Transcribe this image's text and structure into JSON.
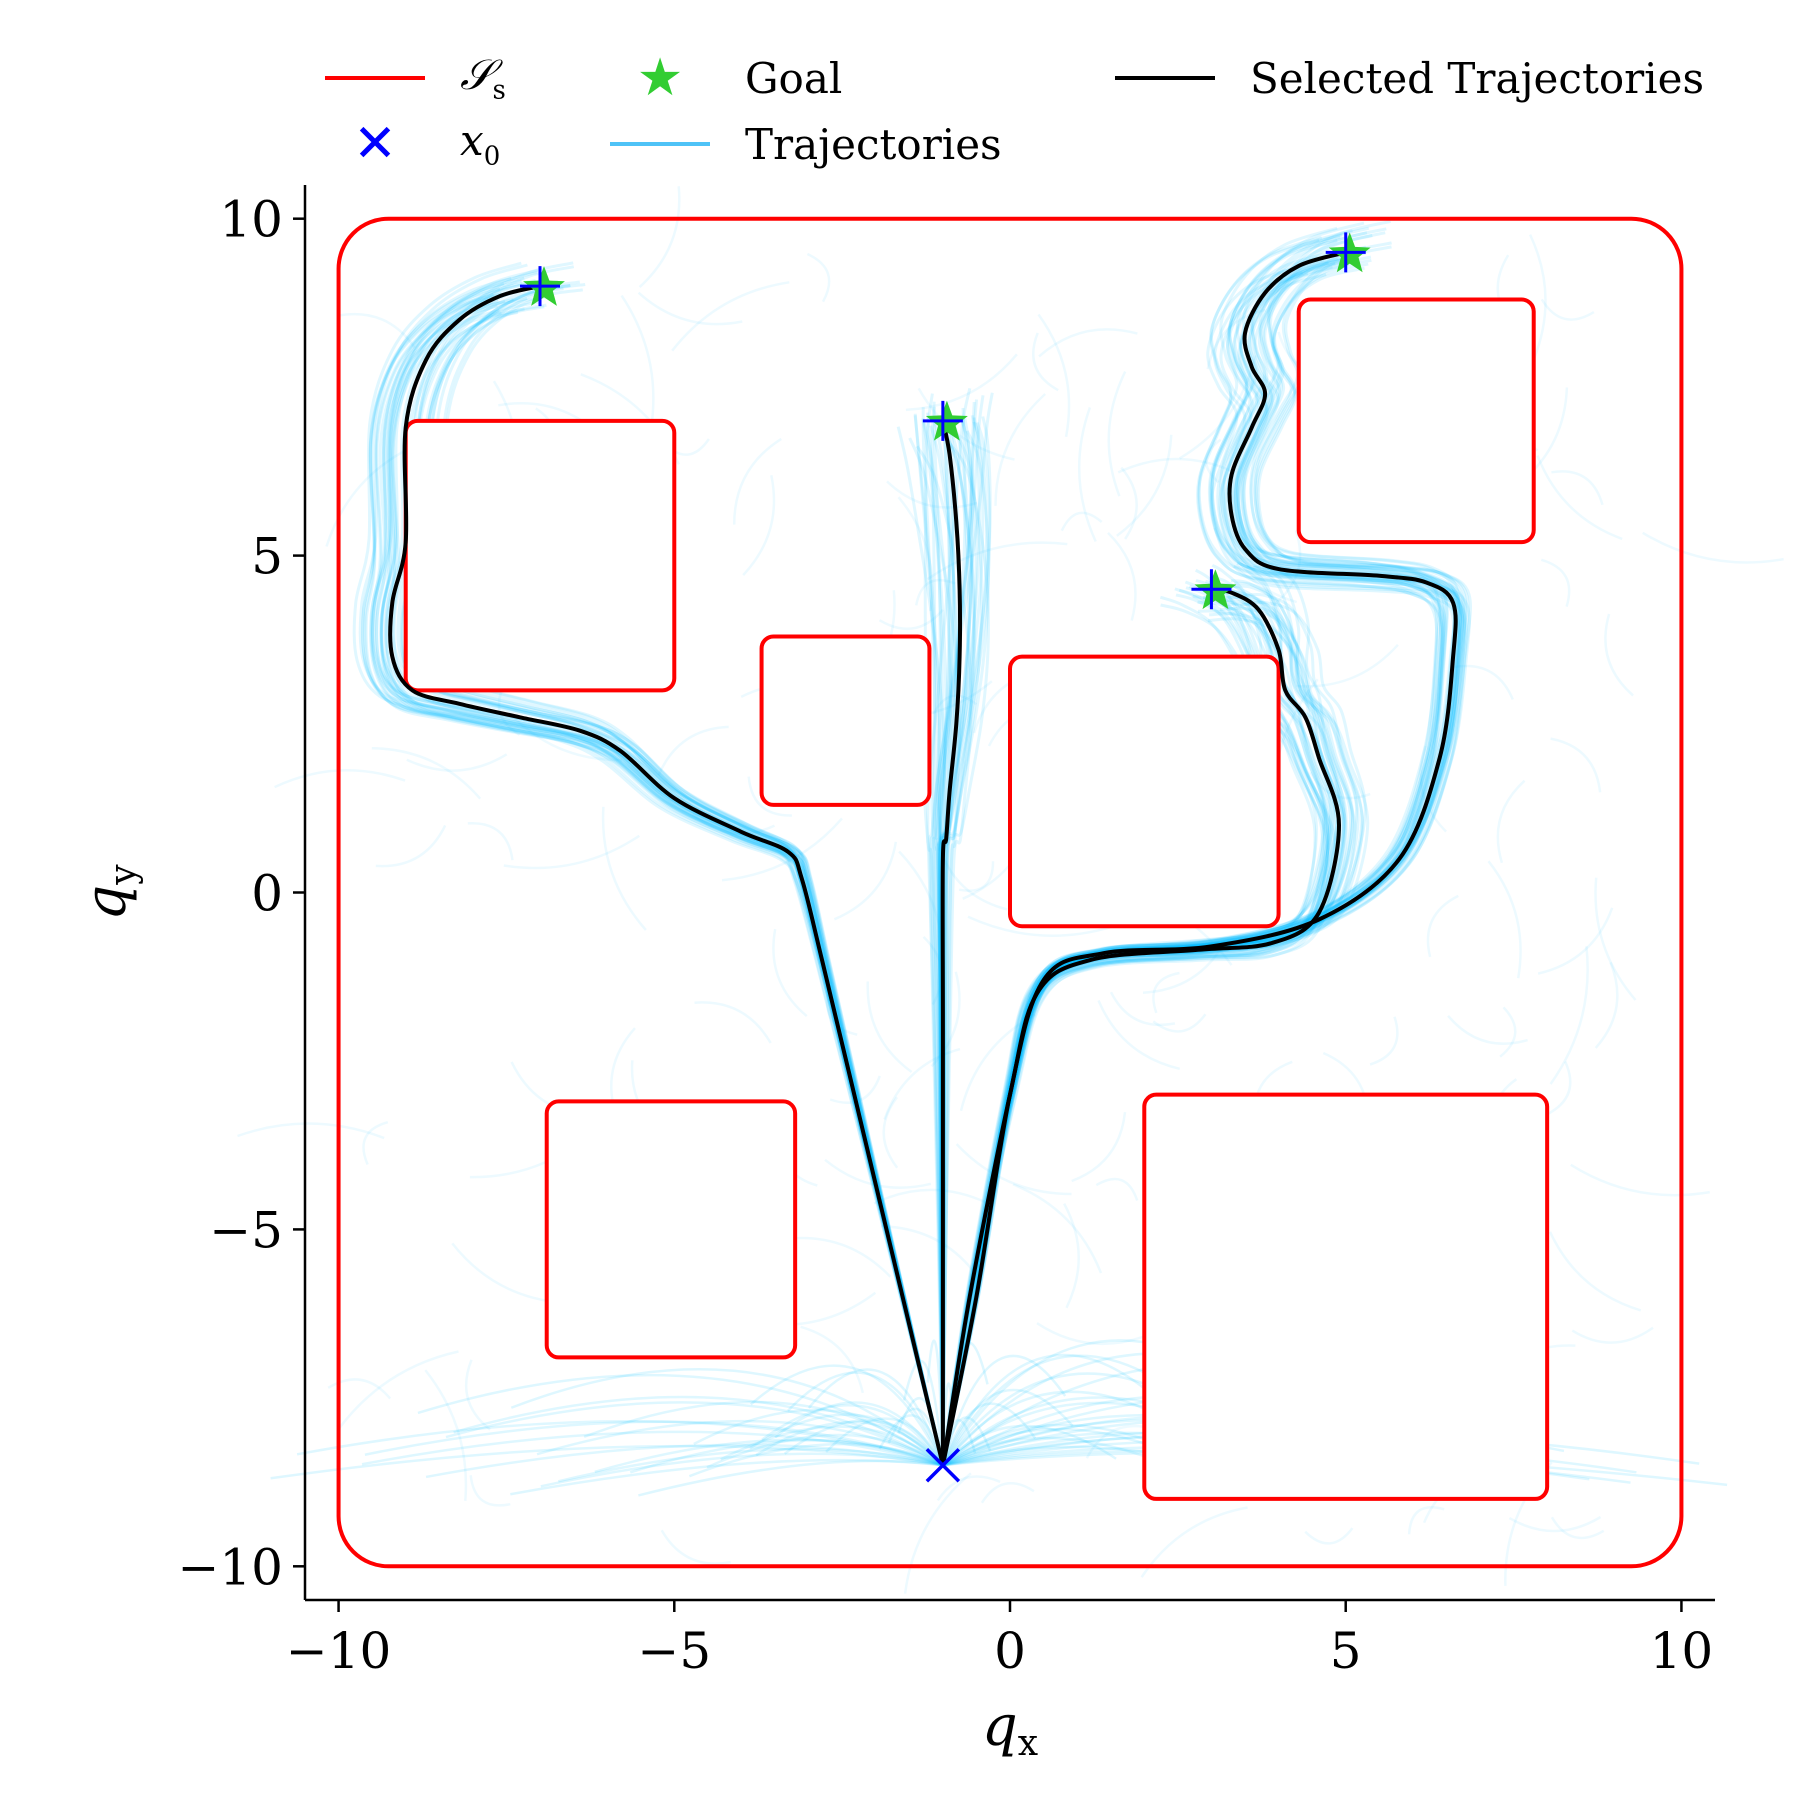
{
  "chart_data": {
    "type": "line",
    "xlabel": "q",
    "xlabel_sub": "x",
    "ylabel": "q",
    "ylabel_sub": "y",
    "xlim": [
      -10.5,
      10.5
    ],
    "ylim": [
      -10.5,
      10.5
    ],
    "xticks": [
      -10,
      -5,
      0,
      5,
      10
    ],
    "yticks": [
      -10,
      -5,
      0,
      5,
      10
    ],
    "xtick_labels": [
      "−10",
      "−5",
      "0",
      "5",
      "10"
    ],
    "ytick_labels": [
      "−10",
      "−5",
      "0",
      "5",
      "10"
    ],
    "grid": false,
    "legend": {
      "placement": "top",
      "entries": [
        {
          "key": "safe_set",
          "label": "𝒮",
          "label_sub": "s",
          "color": "#ff0000",
          "marker": "line"
        },
        {
          "key": "x0",
          "label": "x",
          "label_sub": "0",
          "color": "#0000ff",
          "marker": "x"
        },
        {
          "key": "goal",
          "label": "Goal",
          "color": "#32cd32",
          "marker": "star"
        },
        {
          "key": "trajectories",
          "label": "Trajectories",
          "color": "#4fc3f7",
          "marker": "line"
        },
        {
          "key": "selected",
          "label": "Selected Trajectories",
          "color": "#000000",
          "marker": "line"
        }
      ]
    },
    "colors": {
      "safe_set": "#ff0000",
      "x0": "#0000ff",
      "goal": "#32cd32",
      "trajectories": "#00bfff",
      "selected": "#000000"
    },
    "safe_set_boundary": {
      "x": [
        -10,
        10
      ],
      "y": [
        -10,
        10
      ]
    },
    "obstacles": [
      {
        "x": [
          -9,
          -5
        ],
        "y": [
          3,
          7
        ]
      },
      {
        "x": [
          -3.7,
          -1.2
        ],
        "y": [
          1.3,
          3.8
        ]
      },
      {
        "x": [
          0,
          4
        ],
        "y": [
          -0.5,
          3.5
        ]
      },
      {
        "x": [
          4.3,
          7.8
        ],
        "y": [
          5.2,
          8.8
        ]
      },
      {
        "x": [
          -6.9,
          -3.2
        ],
        "y": [
          -6.9,
          -3.1
        ]
      },
      {
        "x": [
          2,
          8
        ],
        "y": [
          -9,
          -3
        ]
      }
    ],
    "start": {
      "x": -1,
      "y": -8.5
    },
    "goals": [
      {
        "x": -7,
        "y": 9
      },
      {
        "x": -1,
        "y": 7
      },
      {
        "x": 3,
        "y": 4.5
      },
      {
        "x": 5,
        "y": 9.5
      }
    ],
    "selected_trajectories": [
      {
        "x": [
          -1,
          -1.6,
          -2.2,
          -2.8,
          -3.1,
          -3.3,
          -4.0,
          -5.0,
          -5.8,
          -6.4,
          -7.3,
          -8.2,
          -8.9,
          -9.2,
          -9.2,
          -9.0,
          -9.0,
          -8.7,
          -8.2,
          -7.6,
          -7.0
        ],
        "y": [
          -8.5,
          -6.0,
          -3.5,
          -1.0,
          0.2,
          0.6,
          0.9,
          1.4,
          2.1,
          2.4,
          2.6,
          2.8,
          3.0,
          3.5,
          4.3,
          5.2,
          6.9,
          7.9,
          8.5,
          8.85,
          9.0
        ]
      },
      {
        "x": [
          -1,
          -1.0,
          -1.0,
          -1.0,
          -0.95,
          -0.9,
          -0.8,
          -0.75,
          -0.75,
          -0.8,
          -0.9,
          -1.0
        ],
        "y": [
          -8.5,
          -5.0,
          -2.0,
          0.5,
          0.8,
          1.5,
          2.5,
          3.5,
          4.5,
          5.5,
          6.5,
          7.0
        ]
      },
      {
        "x": [
          -1,
          -0.6,
          0.0,
          0.4,
          1.2,
          2.8,
          3.9,
          4.6,
          4.9,
          4.6,
          4.4,
          4.1,
          4.0,
          3.7,
          3.3,
          3.0
        ],
        "y": [
          -8.5,
          -6.0,
          -3.0,
          -1.5,
          -1.0,
          -0.85,
          -0.75,
          -0.3,
          1.0,
          2.0,
          2.6,
          3.0,
          3.6,
          4.2,
          4.45,
          4.5
        ]
      },
      {
        "x": [
          -1,
          -0.5,
          0.0,
          0.5,
          1.4,
          3.0,
          4.6,
          5.8,
          6.4,
          6.6,
          6.6,
          6.2,
          5.5,
          4.0,
          3.5,
          3.3,
          3.3,
          3.6,
          3.8,
          3.6,
          3.5,
          3.8,
          4.3,
          5.0
        ],
        "y": [
          -8.5,
          -6.0,
          -3.0,
          -1.3,
          -0.9,
          -0.8,
          -0.4,
          0.5,
          2.0,
          3.5,
          4.3,
          4.6,
          4.7,
          4.8,
          5.1,
          5.6,
          6.2,
          6.9,
          7.4,
          7.8,
          8.3,
          8.9,
          9.3,
          9.5
        ]
      }
    ]
  }
}
